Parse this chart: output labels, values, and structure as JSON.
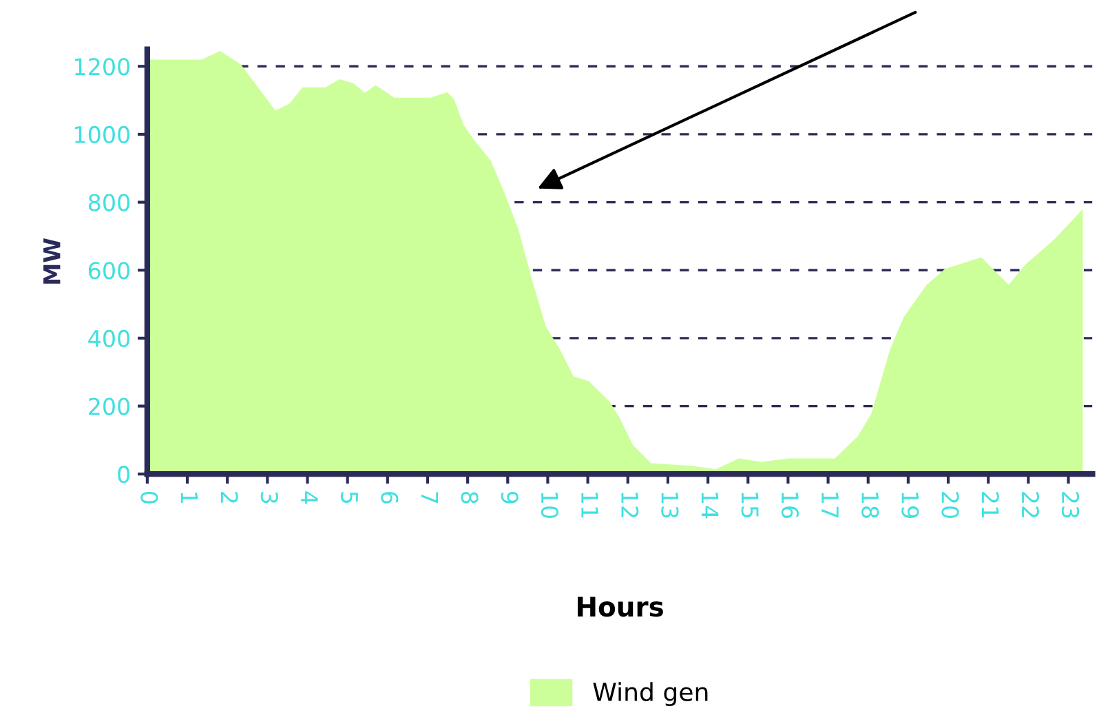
{
  "chart_data": {
    "type": "area",
    "xlabel": "Hours",
    "ylabel": "MW",
    "xlim": [
      0,
      23.6
    ],
    "xticks": [
      0,
      1,
      2,
      3,
      4,
      5,
      6,
      7,
      8,
      9,
      10,
      11,
      12,
      13,
      14,
      15,
      16,
      17,
      18,
      19,
      20,
      21,
      22,
      23
    ],
    "ylim": [
      0,
      1250
    ],
    "yticks": [
      0,
      200,
      400,
      600,
      800,
      1000,
      1200
    ],
    "grid": "y",
    "legend": "bottom",
    "series": [
      {
        "name": "Wind gen",
        "color": "#ccff99",
        "x": [
          0,
          1.36,
          1.82,
          2.34,
          3.2,
          3.55,
          3.88,
          4.45,
          4.8,
          5.15,
          5.43,
          5.7,
          6.17,
          7.08,
          7.49,
          7.66,
          7.89,
          8.12,
          8.58,
          8.92,
          9.27,
          9.61,
          9.95,
          10.3,
          10.64,
          11.03,
          11.55,
          11.79,
          12.13,
          12.58,
          13.6,
          14.2,
          14.77,
          15.33,
          16.02,
          17.17,
          17.74,
          18.08,
          18.55,
          18.89,
          19.46,
          19.92,
          20.83,
          21.17,
          21.51,
          21.93,
          22.67,
          23.36
        ],
        "values": [
          1220,
          1220,
          1245,
          1205,
          1070,
          1090,
          1138,
          1138,
          1162,
          1150,
          1122,
          1145,
          1108,
          1108,
          1124,
          1104,
          1030,
          989,
          922,
          827,
          719,
          571,
          435,
          368,
          288,
          273,
          212,
          166,
          85,
          32,
          24,
          14,
          46,
          36,
          46,
          46,
          111,
          178,
          368,
          462,
          557,
          604,
          638,
          597,
          557,
          617,
          693,
          780
        ]
      }
    ]
  }
}
